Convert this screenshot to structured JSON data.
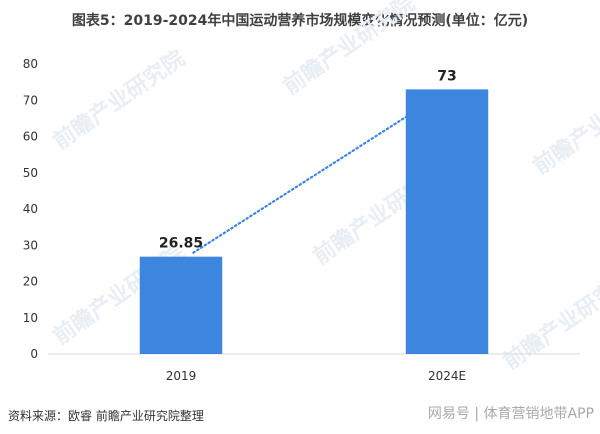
{
  "chart_data": {
    "type": "bar",
    "title": "图表5：2019-2024年中国运动营养市场规模变化情况预测(单位：亿元)",
    "categories": [
      "2019",
      "2024E"
    ],
    "values": [
      26.85,
      73
    ],
    "value_labels": [
      "26.85",
      "73"
    ],
    "ylim": [
      0,
      80
    ],
    "yticks": [
      0,
      10,
      20,
      30,
      40,
      50,
      60,
      70,
      80
    ],
    "xlabel": "",
    "ylabel": "",
    "grid": false,
    "trendline": {
      "style": "dotted",
      "from": "2019",
      "to": "2024E"
    },
    "bar_color": "#3d86e0",
    "trend_color": "#3d86e0"
  },
  "source_text": "资料来源：欧睿 前瞻产业研究院整理",
  "footer_brand": "网易号 | 体育营销地带APP",
  "watermark_text": "前瞻产业研究院"
}
